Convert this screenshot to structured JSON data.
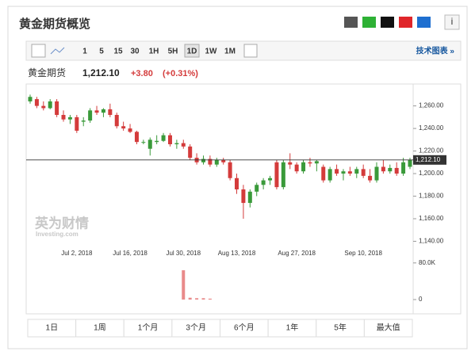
{
  "header": {
    "title": "黄金期货概览",
    "link": "技术图表 »"
  },
  "toolbar": {
    "intervals": [
      "1",
      "5",
      "15",
      "30",
      "1H",
      "5H",
      "1D",
      "1W",
      "1M"
    ],
    "active": "1D"
  },
  "quote": {
    "name": "黄金期货",
    "price": "1,212.10",
    "change": "+3.80",
    "change_pct": "(+0.31%)"
  },
  "watermark": {
    "brand": "英为财情",
    "site": "Investing.com"
  },
  "ranges": [
    "1日",
    "1周",
    "1个月",
    "3个月",
    "6个月",
    "1年",
    "5年",
    "最大值"
  ],
  "chart_data": {
    "type": "candlestick",
    "categories": [
      null,
      null,
      null,
      null,
      null,
      null,
      null,
      "Jul 2, 2018",
      null,
      null,
      null,
      null,
      null,
      null,
      null,
      "Jul 16, 2018",
      null,
      null,
      null,
      null,
      null,
      null,
      null,
      "Jul 30, 2018",
      null,
      null,
      null,
      null,
      null,
      null,
      null,
      "Aug 13, 2018",
      null,
      null,
      null,
      null,
      null,
      null,
      null,
      null,
      "Aug 27, 2018",
      null,
      null,
      null,
      null,
      null,
      null,
      null,
      null,
      null,
      "Sep 10, 2018",
      null,
      null,
      null,
      null,
      null,
      null,
      null
    ],
    "open": [
      1264,
      1266,
      1260,
      1258,
      1264,
      1252,
      1248,
      1250,
      1246,
      1247,
      1256,
      1254,
      1257,
      1252,
      1242,
      1240,
      1237,
      1228,
      1222,
      1228,
      1229,
      1234,
      1226,
      1227,
      1224,
      1214,
      1210,
      1213,
      1208,
      1212,
      1210,
      1196,
      1186,
      1174,
      1184,
      1190,
      1194,
      1210,
      1188,
      1210,
      1208,
      1202,
      1210,
      1209,
      1206,
      1194,
      1204,
      1200,
      1202,
      1200,
      1204,
      1198,
      1194,
      1206,
      1202,
      1205,
      1200,
      1206
    ],
    "high": [
      1270,
      1268,
      1264,
      1266,
      1266,
      1256,
      1252,
      1252,
      1250,
      1258,
      1260,
      1258,
      1262,
      1254,
      1246,
      1244,
      1238,
      1230,
      1232,
      1234,
      1236,
      1236,
      1230,
      1230,
      1226,
      1218,
      1216,
      1216,
      1214,
      1214,
      1212,
      1200,
      1190,
      1186,
      1192,
      1196,
      1198,
      1212,
      1212,
      1218,
      1210,
      1212,
      1214,
      1212,
      1208,
      1206,
      1208,
      1204,
      1206,
      1206,
      1208,
      1204,
      1210,
      1212,
      1208,
      1210,
      1214,
      1214
    ],
    "low": [
      1262,
      1258,
      1256,
      1257,
      1250,
      1246,
      1244,
      1236,
      1242,
      1245,
      1252,
      1250,
      1250,
      1240,
      1238,
      1236,
      1226,
      1226,
      1216,
      1226,
      1228,
      1224,
      1222,
      1222,
      1212,
      1208,
      1208,
      1206,
      1206,
      1208,
      1194,
      1182,
      1160,
      1170,
      1180,
      1186,
      1190,
      1186,
      1186,
      1204,
      1200,
      1200,
      1206,
      1202,
      1192,
      1192,
      1198,
      1194,
      1198,
      1196,
      1196,
      1192,
      1192,
      1200,
      1200,
      1198,
      1198,
      1204
    ],
    "close": [
      1268,
      1260,
      1258,
      1264,
      1252,
      1248,
      1250,
      1238,
      1247,
      1256,
      1254,
      1257,
      1252,
      1242,
      1240,
      1237,
      1228,
      1228,
      1230,
      1229,
      1234,
      1226,
      1227,
      1224,
      1214,
      1210,
      1213,
      1208,
      1212,
      1210,
      1196,
      1186,
      1174,
      1184,
      1190,
      1194,
      1196,
      1188,
      1210,
      1208,
      1202,
      1210,
      1209,
      1211,
      1194,
      1204,
      1200,
      1202,
      1200,
      1204,
      1198,
      1194,
      1206,
      1202,
      1205,
      1200,
      1210,
      1212.1
    ],
    "volume": [
      0,
      0,
      0,
      0,
      0,
      0,
      0,
      0,
      0,
      0,
      0,
      0,
      0,
      0,
      0,
      0,
      0,
      0,
      0,
      0,
      0,
      0,
      0,
      64000,
      4000,
      3000,
      3000,
      2000,
      0,
      0,
      0,
      0,
      0,
      0,
      0,
      0,
      0,
      0,
      0,
      0,
      0,
      0,
      0,
      0,
      0,
      0,
      0,
      0,
      0,
      0,
      0,
      0,
      0,
      0,
      0,
      0,
      0,
      0
    ],
    "up_color": "#3a9a3a",
    "down_color": "#d43b3b",
    "volume_color": "#e98a8a",
    "ylim": [
      1134,
      1278
    ],
    "yticks": [
      {
        "value": 1140,
        "label": "1,140.00"
      },
      {
        "value": 1160,
        "label": "1,160.00"
      },
      {
        "value": 1180,
        "label": "1,180.00"
      },
      {
        "value": 1200,
        "label": "1,200.00"
      },
      {
        "value": 1220,
        "label": "1,220.00"
      },
      {
        "value": 1240,
        "label": "1,240.00"
      },
      {
        "value": 1260,
        "label": "1,260.00"
      }
    ],
    "volume_ylim": [
      0,
      90000
    ],
    "volume_ticks": [
      {
        "value": 80000,
        "label": "80.0K"
      },
      0
    ],
    "last_price": {
      "value": 1212.1,
      "label": "1,212.10"
    }
  }
}
